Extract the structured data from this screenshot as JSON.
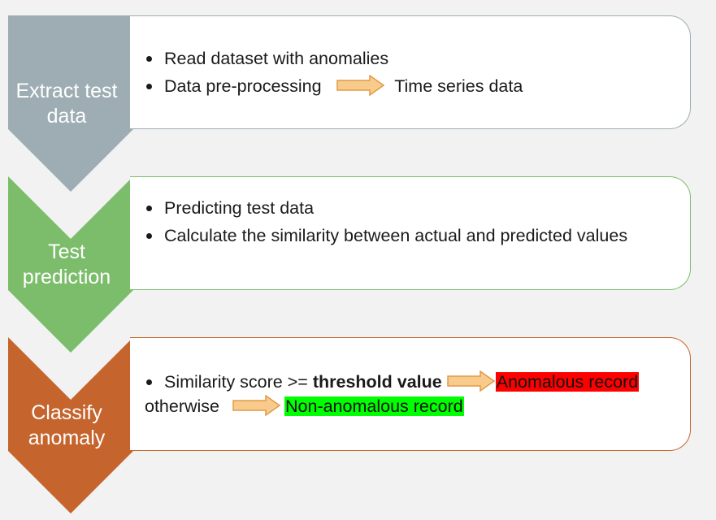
{
  "colors": {
    "background": "#f2f2f2",
    "arrow_fill": "#f8cb8c",
    "arrow_stroke": "#e09b45",
    "anomalous_highlight": "#ff0000",
    "non_anomalous_highlight": "#00ff00"
  },
  "steps": [
    {
      "chevron_label_line1": "Extract test",
      "chevron_label_line2": "data",
      "chevron_color": "#9dadb3",
      "border_color": "#9dadb3",
      "bullets": [
        {
          "text": "Read dataset with anomalies"
        },
        {
          "text": "Data pre-processing",
          "arrow": "arrow-right-icon",
          "result": "Time series data"
        }
      ]
    },
    {
      "chevron_label_line1": "Test",
      "chevron_label_line2": "prediction",
      "chevron_color": "#7cbd6b",
      "border_color": "#7cbd6b",
      "bullets": [
        {
          "text": "Predicting test data"
        },
        {
          "text": "Calculate the similarity between actual and predicted values"
        }
      ]
    },
    {
      "chevron_label_line1": "Classify",
      "chevron_label_line2": "anomaly",
      "chevron_color": "#c5652d",
      "border_color": "#c5652d",
      "bullets": [
        {
          "prefix": "Similarity score >=",
          "bold": "threshold value",
          "arrow": "arrow-right-icon",
          "result": "Anomalous record"
        }
      ],
      "otherwise": {
        "text": "otherwise",
        "arrow": "arrow-right-icon",
        "result": "Non-anomalous record"
      }
    }
  ]
}
